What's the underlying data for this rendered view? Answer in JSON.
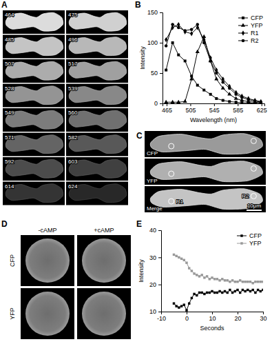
{
  "panel_labels": [
    "A",
    "B",
    "C",
    "D",
    "E"
  ],
  "spectral_images": {
    "wavelengths": [
      464,
      475,
      485,
      496,
      507,
      517,
      528,
      539,
      549,
      560,
      571,
      582,
      592,
      603,
      614,
      624
    ]
  },
  "merge_images": {
    "labels": [
      "CFP",
      "YFP",
      "Merge"
    ],
    "regions": [
      "R1",
      "R2"
    ],
    "scale_bar": "10μm"
  },
  "camp_images": {
    "columns": [
      "-cAMP",
      "+cAMP"
    ],
    "rows": [
      "CFP",
      "YFP"
    ]
  },
  "chart_data": [
    {
      "type": "line",
      "x_label": "Wavelength (nm)",
      "y_label": "Intensity",
      "x": [
        464,
        475,
        485,
        496,
        507,
        517,
        528,
        539,
        549,
        560,
        571,
        582,
        592,
        603,
        614,
        624
      ],
      "xlim": [
        458,
        630
      ],
      "xticks": [
        465,
        505,
        545,
        585,
        625
      ],
      "ylim": [
        0,
        150
      ],
      "yticks": [
        0,
        50,
        100,
        150
      ],
      "legend": "top-right",
      "series": [
        {
          "name": "CFP",
          "color": "#000000",
          "marker": "square",
          "values": [
            55,
            100,
            80,
            70,
            45,
            30,
            22,
            15,
            8,
            5,
            3,
            2,
            1,
            1,
            0,
            0
          ]
        },
        {
          "name": "YFP",
          "color": "#000000",
          "marker": "triangle",
          "values": [
            2,
            2,
            2,
            3,
            40,
            85,
            110,
            70,
            40,
            25,
            15,
            8,
            5,
            3,
            2,
            1
          ]
        },
        {
          "name": "R1",
          "color": "#000000",
          "marker": "diamond",
          "values": [
            105,
            125,
            130,
            118,
            115,
            125,
            105,
            75,
            55,
            40,
            28,
            18,
            12,
            8,
            5,
            3
          ]
        },
        {
          "name": "R2",
          "color": "#000000",
          "marker": "circle",
          "values": [
            95,
            130,
            125,
            120,
            122,
            130,
            100,
            70,
            50,
            35,
            25,
            15,
            10,
            6,
            4,
            2
          ]
        }
      ]
    },
    {
      "type": "line",
      "x_label": "Seconds",
      "y_label": "Intensity",
      "x": [
        -5,
        -4,
        -3,
        -2,
        -1,
        0,
        1,
        2,
        3,
        4,
        5,
        6,
        7,
        8,
        9,
        10,
        11,
        12,
        13,
        14,
        15,
        16,
        17,
        18,
        19,
        20,
        21,
        22,
        23,
        24,
        25,
        26,
        27,
        28,
        29,
        30
      ],
      "xlim": [
        -10,
        30
      ],
      "xticks": [
        -10,
        0,
        10,
        20,
        30
      ],
      "ylim": [
        10,
        40
      ],
      "yticks": [
        10,
        20,
        30,
        40
      ],
      "legend": "top-right",
      "series": [
        {
          "name": "CFP",
          "color": "#000000",
          "marker": "square",
          "values": [
            13,
            12,
            11.5,
            12,
            12.5,
            10.5,
            13,
            15,
            16.5,
            16,
            17,
            17,
            16.5,
            17,
            17,
            17.5,
            17,
            17,
            17.5,
            17,
            17.5,
            17,
            18,
            17,
            17.5,
            18,
            17,
            18,
            17.5,
            18,
            17.5,
            18,
            17,
            18,
            17.5,
            18
          ]
        },
        {
          "name": "YFP",
          "color": "#999999",
          "marker": "square",
          "values": [
            31,
            30.5,
            30,
            29.5,
            29,
            28,
            26,
            25,
            24,
            23.5,
            23,
            23.5,
            22.5,
            23,
            22,
            22.5,
            22,
            22,
            21.5,
            22,
            21.5,
            21.5,
            21,
            21.5,
            21,
            21,
            21.5,
            21,
            21,
            21,
            21,
            20.5,
            21,
            21,
            21,
            21
          ]
        }
      ]
    }
  ]
}
